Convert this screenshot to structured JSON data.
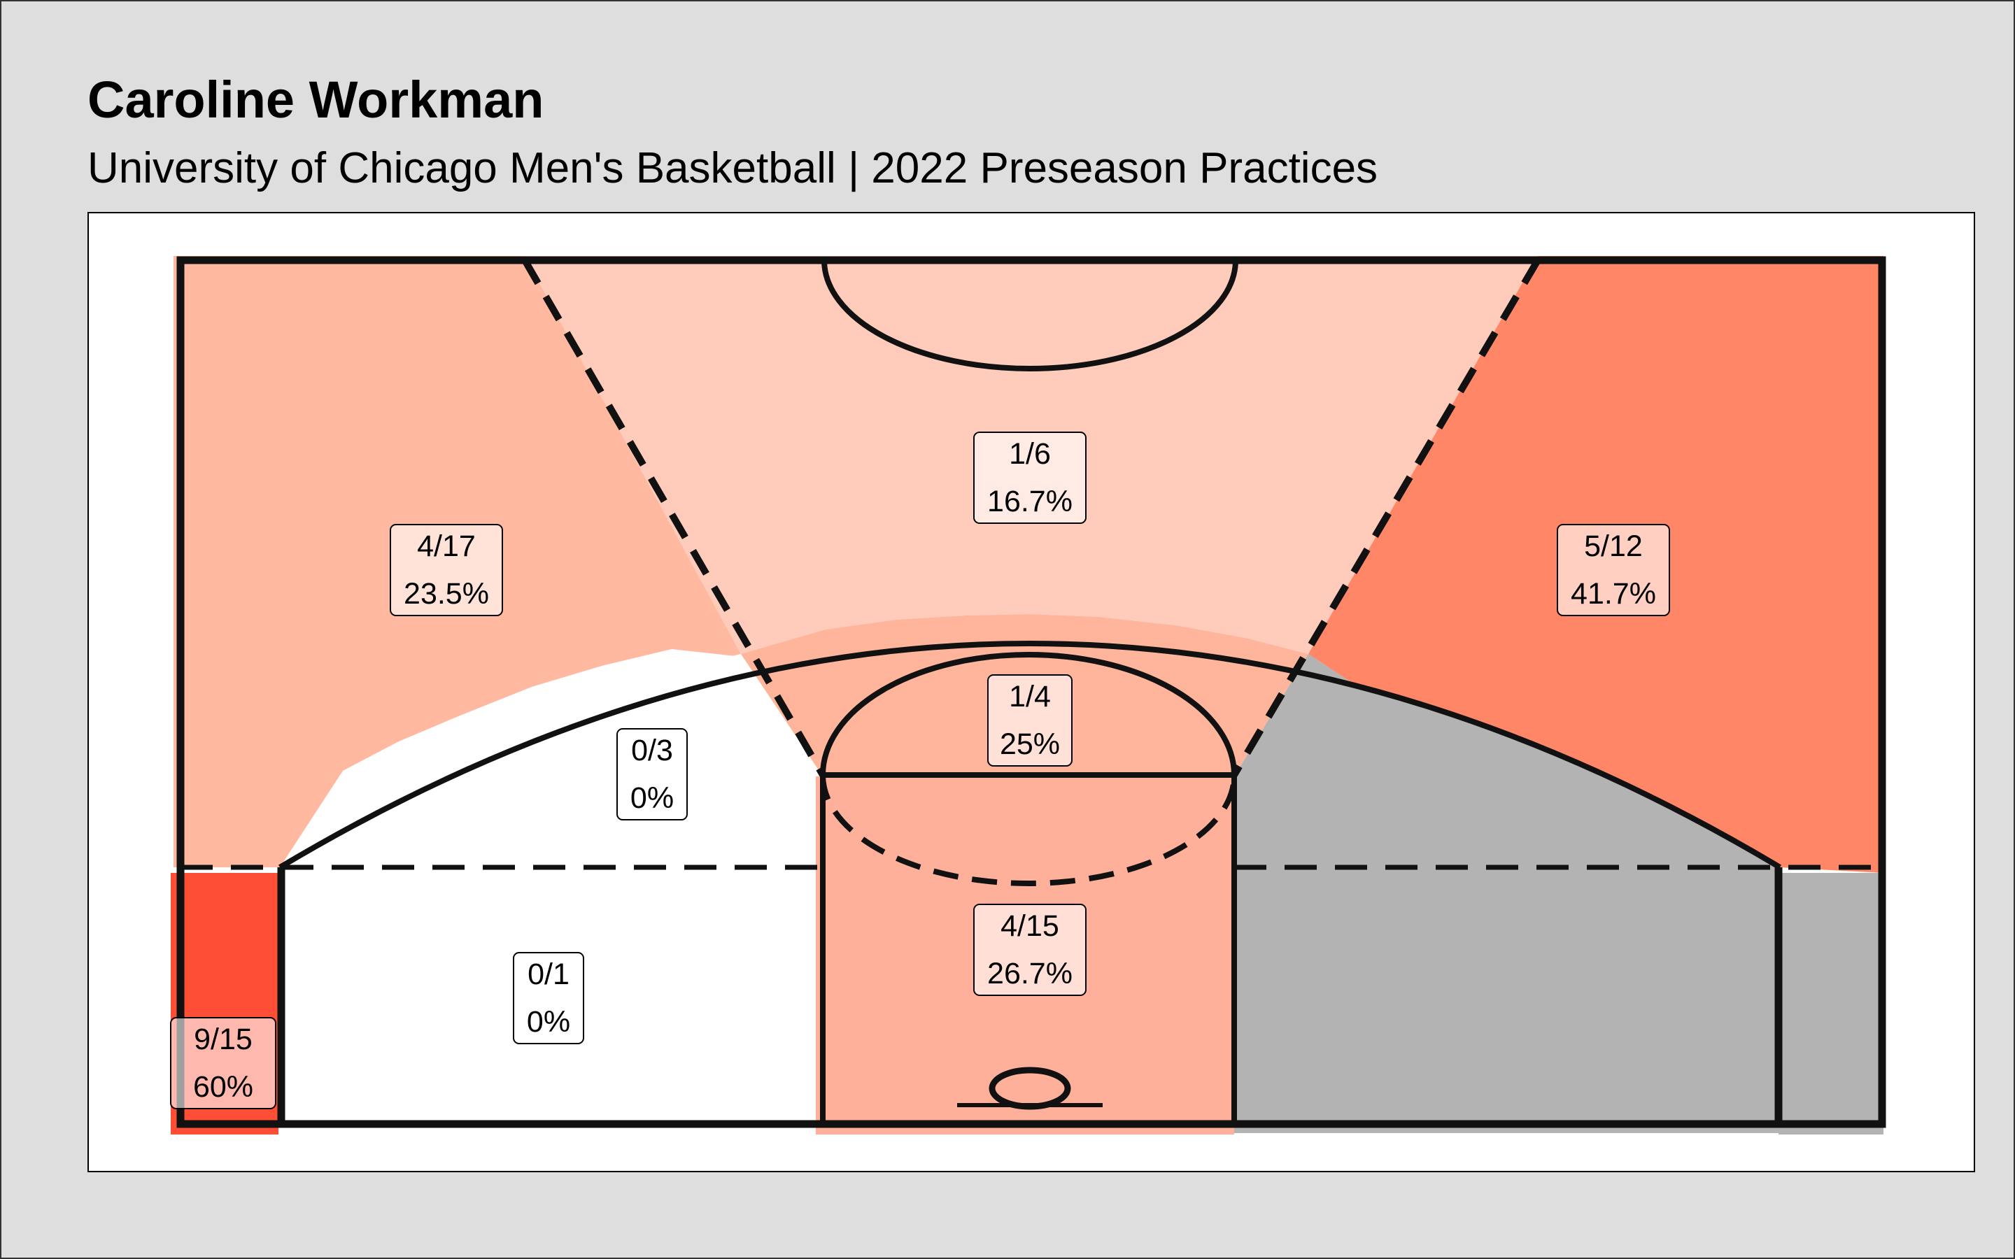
{
  "header": {
    "title": "Caroline Workman",
    "subtitle": "University of Chicago Men's Basketball | 2022 Preseason Practices"
  },
  "colors": {
    "background": "#dedede",
    "panel": "#ffffff",
    "no_attempts": "#b3b3b3",
    "scale_low": "#ffffff",
    "scale_high": "#ff4433"
  },
  "chart_data": {
    "type": "heatmap",
    "title": "Caroline Workman",
    "subtitle": "University of Chicago Men's Basketball | 2022 Preseason Practices",
    "zones": [
      {
        "name": "left-corner-three",
        "made": 9,
        "attempts": 15,
        "pct": 60.0,
        "text_made": "9/15",
        "text_pct": "60%",
        "color": "#ff4e36"
      },
      {
        "name": "left-wing-three",
        "made": 4,
        "attempts": 17,
        "pct": 23.5,
        "text_made": "4/17",
        "text_pct": "23.5%",
        "color": "#ffb9a0"
      },
      {
        "name": "top-of-key-three",
        "made": 1,
        "attempts": 6,
        "pct": 16.7,
        "text_made": "1/6",
        "text_pct": "16.7%",
        "color": "#ffcbbb"
      },
      {
        "name": "right-wing-three",
        "made": 5,
        "attempts": 12,
        "pct": 41.7,
        "text_made": "5/12",
        "text_pct": "41.7%",
        "color": "#ff8767"
      },
      {
        "name": "left-elbow-midrange",
        "made": 0,
        "attempts": 3,
        "pct": 0,
        "text_made": "0/3",
        "text_pct": "0%",
        "color": "#ffffff"
      },
      {
        "name": "free-throw-midrange",
        "made": 1,
        "attempts": 4,
        "pct": 25.0,
        "text_made": "1/4",
        "text_pct": "25%",
        "color": "#ffb49c"
      },
      {
        "name": "left-baseline-midrange",
        "made": 0,
        "attempts": 1,
        "pct": 0,
        "text_made": "0/1",
        "text_pct": "0%",
        "color": "#ffffff"
      },
      {
        "name": "paint",
        "made": 4,
        "attempts": 15,
        "pct": 26.7,
        "text_made": "4/15",
        "text_pct": "26.7%",
        "color": "#ffb09a"
      },
      {
        "name": "right-midrange",
        "made": 0,
        "attempts": 0,
        "pct": null,
        "text_made": "",
        "text_pct": "",
        "color": "#b3b3b3"
      },
      {
        "name": "right-corner-three",
        "made": 0,
        "attempts": 0,
        "pct": null,
        "text_made": "",
        "text_pct": "",
        "color": "#b3b3b3"
      }
    ]
  }
}
